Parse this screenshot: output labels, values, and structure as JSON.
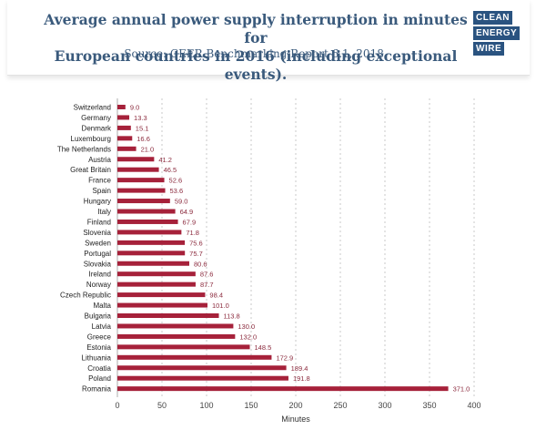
{
  "header": {
    "title_line1": "Average annual power supply interruption in minutes for",
    "title_line2": "European countries in 2016 (including exceptional events).",
    "source": "Source: CEER Benchmarking Report 6.1, 2018.",
    "logo_lines": [
      "CLEAN",
      "ENERGY",
      "WIRE"
    ]
  },
  "colors": {
    "bar": "#a6213a",
    "label": "#8b2a3d",
    "title": "#3a5a7c",
    "logo": "#2a5380",
    "grid": "#c8c8c8"
  },
  "chart_data": {
    "type": "bar",
    "orientation": "horizontal",
    "title": "Average annual power supply interruption in minutes for European countries in 2016 (including exceptional events).",
    "xlabel": "Minutes",
    "ylabel": "",
    "xlim": [
      0,
      400
    ],
    "xticks": [
      0,
      50,
      100,
      150,
      200,
      250,
      300,
      350,
      400
    ],
    "grid": "vertical dashed",
    "categories": [
      "Switzerland",
      "Germany",
      "Denmark",
      "Luxembourg",
      "The Netherlands",
      "Austria",
      "Great Britain",
      "France",
      "Spain",
      "Hungary",
      "Italy",
      "Finland",
      "Slovenia",
      "Sweden",
      "Portugal",
      "Slovakia",
      "Ireland",
      "Norway",
      "Czech Republic",
      "Malta",
      "Bulgaria",
      "Latvia",
      "Greece",
      "Estonia",
      "Lithuania",
      "Croatia",
      "Poland",
      "Romania"
    ],
    "values": [
      9.0,
      13.3,
      15.1,
      16.6,
      21.0,
      41.2,
      46.5,
      52.6,
      53.6,
      59.0,
      64.9,
      67.9,
      71.8,
      75.6,
      75.7,
      80.6,
      87.6,
      87.7,
      98.4,
      101.0,
      113.8,
      130.0,
      132.0,
      148.5,
      172.9,
      189.4,
      191.8,
      371.0
    ],
    "value_labels": [
      "9.0",
      "13.3",
      "15.1",
      "16.6",
      "21.0",
      "41.2",
      "46.5",
      "52.6",
      "53.6",
      "59.0",
      "64.9",
      "67.9",
      "71.8",
      "75.6",
      "75.7",
      "80.6",
      "87.6",
      "87.7",
      "98.4",
      "101.0",
      "113.8",
      "130.0",
      "132.0",
      "148.5",
      "172.9",
      "189.4",
      "191.8",
      "371.0"
    ]
  }
}
